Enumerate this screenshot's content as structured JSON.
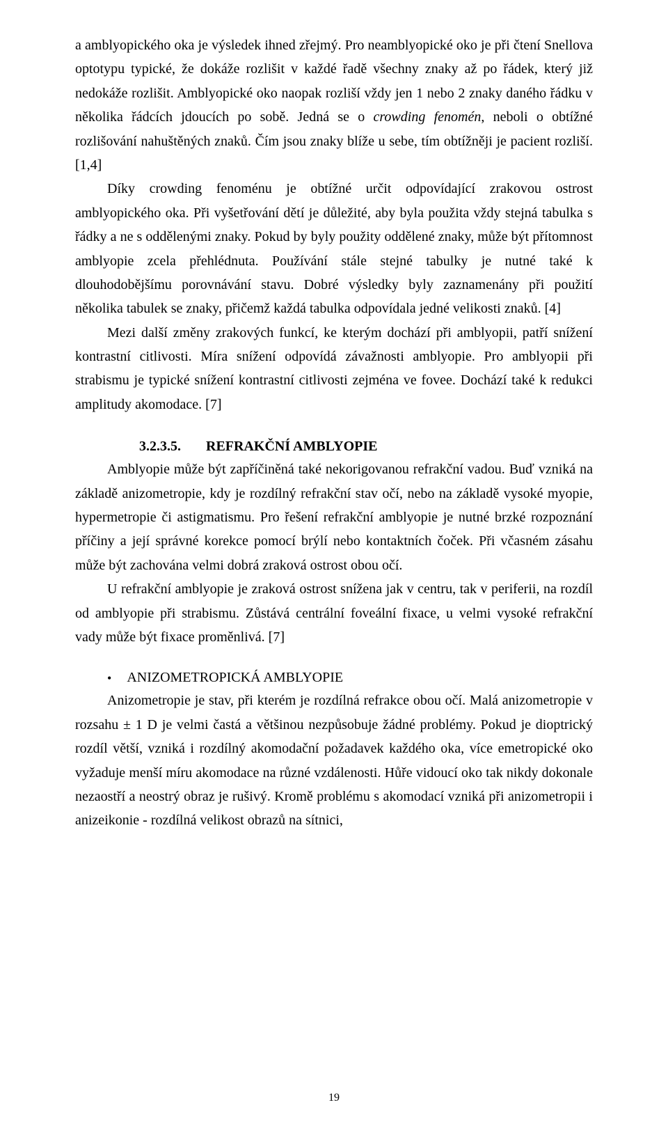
{
  "paragraphs": {
    "p1a": "a amblyopického oka je výsledek ihned zřejmý. Pro neamblyopické oko je při čtení Snellova optotypu typické, že dokáže rozlišit v každé řadě všechny znaky až po řádek, který již nedokáže rozlišit. Amblyopické oko naopak rozliší vždy jen 1 nebo 2 znaky daného řádku v několika řádcích jdoucích po sobě. Jedná se o ",
    "p1em": "crowding fenomén",
    "p1b": ", neboli o obtížné rozlišování nahuštěných znaků. Čím jsou znaky blíže u sebe, tím obtížněji je pacient rozliší. [1,4]",
    "p2": "Díky crowding fenoménu je obtížné určit odpovídající zrakovou ostrost amblyopického oka. Při vyšetřování dětí je důležité, aby byla použita vždy stejná tabulka s řádky a ne s oddělenými znaky. Pokud by byly použity oddělené znaky, může být přítomnost amblyopie zcela přehlédnuta. Používání stále stejné tabulky je nutné také k dlouhodobějšímu porovnávání stavu. Dobré výsledky byly zaznamenány při použití několika tabulek se znaky, přičemž každá tabulka odpovídala jedné velikosti znaků. [4]",
    "p3": "Mezi další změny zrakových funkcí, ke kterým dochází při amblyopii, patří snížení kontrastní citlivosti. Míra snížení odpovídá závažnosti amblyopie. Pro amblyopii při strabismu je typické snížení kontrastní citlivosti zejména ve fovee. Dochází také k redukci amplitudy akomodace. [7]",
    "section_number": "3.2.3.5.",
    "section_title": "REFRAKČNÍ AMBLYOPIE",
    "p4": "Amblyopie může být zapříčiněná také nekorigovanou refrakční vadou. Buď vzniká na základě anizometropie, kdy je rozdílný refrakční stav očí, nebo na základě vysoké myopie, hypermetropie či astigmatismu. Pro řešení refrakční amblyopie je nutné brzké rozpoznání příčiny a její správné korekce pomocí brýlí nebo kontaktních čoček. Při včasném zásahu může být zachována velmi dobrá zraková ostrost obou očí.",
    "p5": "U refrakční amblyopie je zraková ostrost snížena jak v centru, tak v periferii, na rozdíl od amblyopie při strabismu. Zůstává centrální foveální fixace, u velmi vysoké refrakční vady může být fixace proměnlivá. [7]",
    "bullet_title": "ANIZOMETROPICKÁ AMBLYOPIE",
    "p6": "Anizometropie je stav, při kterém je rozdílná refrakce obou očí. Malá anizometropie v rozsahu ± 1 D je velmi častá a většinou nezpůsobuje žádné problémy. Pokud je dioptrický rozdíl větší, vzniká i rozdílný akomodační požadavek každého oka, více emetropické oko vyžaduje menší míru akomodace na různé vzdálenosti. Hůře vidoucí oko tak nikdy dokonale nezaostří a neostrý obraz je rušivý. Kromě problému s akomodací vzniká při anizometropii i anizeikonie - rozdílná velikost obrazů na sítnici,",
    "page_number": "19"
  }
}
